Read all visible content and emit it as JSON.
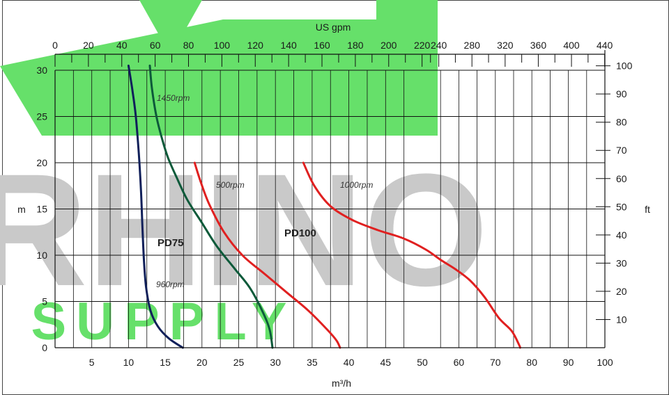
{
  "chart_data": {
    "type": "line",
    "watermark": {
      "main": "RHINO",
      "sub": "SUPPLY",
      "colors": {
        "green": "#66e06a",
        "grey": "#c9c9c9"
      }
    },
    "x_primary": {
      "label": "m³/h",
      "ticks": [
        5,
        10,
        15,
        20,
        25,
        30,
        35,
        40,
        45,
        50,
        60,
        70,
        80,
        90,
        100
      ]
    },
    "x_secondary": {
      "label": "US gpm",
      "ticks": [
        0,
        20,
        40,
        60,
        80,
        100,
        120,
        140,
        160,
        180,
        200,
        220,
        240,
        280,
        320,
        360,
        400,
        440
      ]
    },
    "y_left": {
      "label": "m",
      "ticks": [
        0,
        5,
        10,
        15,
        20,
        25,
        30
      ]
    },
    "y_right": {
      "label": "ft",
      "ticks": [
        10,
        20,
        30,
        40,
        50,
        60,
        70,
        80,
        90,
        100
      ]
    },
    "annotations": {
      "pd75": "PD75",
      "pd100": "PD100"
    },
    "series": [
      {
        "name": "1450rpm",
        "model": "PD75",
        "color": "#0d5a3a",
        "points": [
          [
            12.9,
            30.5
          ],
          [
            13.2,
            28
          ],
          [
            13.8,
            25
          ],
          [
            14.6,
            22.5
          ],
          [
            15.4,
            20.5
          ],
          [
            16.5,
            18.5
          ],
          [
            18,
            16
          ],
          [
            20,
            13.5
          ],
          [
            22,
            11
          ],
          [
            24.5,
            8.5
          ],
          [
            26.5,
            6.5
          ],
          [
            28.2,
            4
          ],
          [
            29.2,
            2
          ],
          [
            29.6,
            0
          ]
        ]
      },
      {
        "name": "960rpm",
        "model": "PD75",
        "color": "#10205a",
        "points": [
          [
            10,
            30.5
          ],
          [
            10.5,
            28
          ],
          [
            11,
            25
          ],
          [
            11.4,
            21
          ],
          [
            11.7,
            17
          ],
          [
            11.9,
            13
          ],
          [
            12.1,
            9.5
          ],
          [
            12.4,
            6.5
          ],
          [
            13,
            4
          ],
          [
            14,
            2.3
          ],
          [
            15.5,
            1
          ],
          [
            17.4,
            0
          ]
        ]
      },
      {
        "name": "500rpm",
        "model": "PD100",
        "color": "#e02020",
        "points": [
          [
            19,
            20
          ],
          [
            19.8,
            18
          ],
          [
            21,
            15.5
          ],
          [
            23,
            12.5
          ],
          [
            25.5,
            10
          ],
          [
            28.5,
            8
          ],
          [
            31.5,
            6
          ],
          [
            34.5,
            4
          ],
          [
            37,
            2
          ],
          [
            38.3,
            0.8
          ],
          [
            38.8,
            0
          ]
        ]
      },
      {
        "name": "1000rpm",
        "model": "PD100",
        "color": "#e02020",
        "points": [
          [
            33.8,
            20
          ],
          [
            35.3,
            17.5
          ],
          [
            37.5,
            15.3
          ],
          [
            40.5,
            13.8
          ],
          [
            44,
            12.7
          ],
          [
            47.5,
            11.8
          ],
          [
            51,
            10.6
          ],
          [
            55,
            9.5
          ],
          [
            59,
            8.5
          ],
          [
            63,
            7.3
          ],
          [
            67,
            5.5
          ],
          [
            71,
            3.2
          ],
          [
            74.5,
            1.8
          ],
          [
            76.5,
            0.3
          ],
          [
            76.8,
            0
          ]
        ]
      }
    ]
  }
}
